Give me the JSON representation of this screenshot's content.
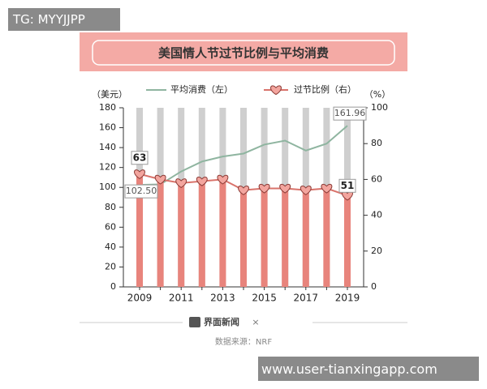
{
  "badge": "TG: MYYJJPP",
  "watermark": "www.user-tianxingapp.com",
  "chart_data": {
    "type": "bar_line",
    "title": "美国情人节过节比例与平均消费",
    "y_label": "（美元）",
    "y2_label": "（%）",
    "categories": [
      "2009",
      null,
      "2011",
      null,
      "2013",
      null,
      "2015",
      null,
      "2017",
      null,
      "2019"
    ],
    "series": [
      {
        "name": "平均消费（左）",
        "color": "#8fb5a0",
        "type": "line",
        "values": [
          102.5,
          103,
          116,
          126,
          131,
          134,
          143,
          147,
          137,
          144,
          161.96
        ],
        "value_labels": [
          "102.50",
          null,
          null,
          null,
          null,
          null,
          null,
          null,
          null,
          null,
          "161.96"
        ]
      },
      {
        "name": "过节比例（右）",
        "color": "#e8847c",
        "type": "bar",
        "axis": "y2",
        "values": [
          63,
          60,
          58,
          59,
          60,
          54,
          55,
          55,
          54,
          55,
          51
        ],
        "value_labels": [
          "63",
          null,
          null,
          null,
          null,
          null,
          null,
          null,
          null,
          null,
          "51"
        ]
      }
    ],
    "ylim": [
      0,
      180
    ],
    "yticks": [
      0,
      20,
      40,
      60,
      80,
      100,
      120,
      140,
      160,
      180
    ],
    "y2lim": [
      0,
      100
    ],
    "y2ticks": [
      0,
      20,
      40,
      60,
      80,
      100
    ],
    "footer": {
      "brand": "界面新闻",
      "cross": "×",
      "source": "数据来源：NRF"
    }
  }
}
